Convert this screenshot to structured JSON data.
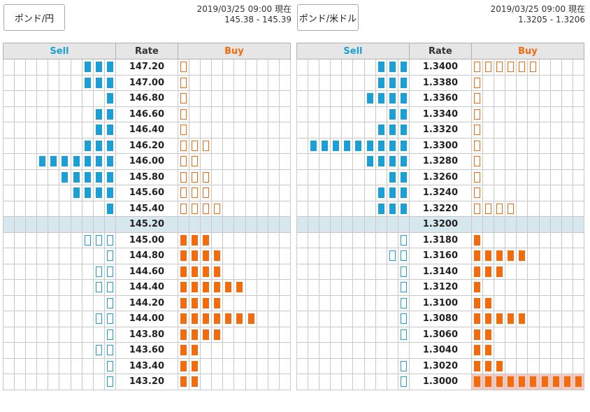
{
  "colors": {
    "sell": "#1a9fd6",
    "buy": "#f26b0c",
    "current_row": "#d7e7ee",
    "highlight": "#f6c9c1",
    "header_bg": "#e6e6e6"
  },
  "panels": [
    {
      "pair_label": "ポンド/円",
      "timestamp": "2019/03/25 09:00 現在",
      "quote": "145.38 - 145.39",
      "headers": {
        "sell": "Sell",
        "rate": "Rate",
        "buy": "Buy"
      },
      "rows": [
        {
          "rate": "147.20",
          "sell": 3,
          "sell_type": "filled",
          "buy": 1,
          "buy_type": "outline"
        },
        {
          "rate": "147.00",
          "sell": 3,
          "sell_type": "filled",
          "buy": 1,
          "buy_type": "outline"
        },
        {
          "rate": "146.80",
          "sell": 1,
          "sell_type": "filled",
          "buy": 1,
          "buy_type": "outline"
        },
        {
          "rate": "146.60",
          "sell": 2,
          "sell_type": "filled",
          "buy": 1,
          "buy_type": "outline"
        },
        {
          "rate": "146.40",
          "sell": 2,
          "sell_type": "filled",
          "buy": 1,
          "buy_type": "outline"
        },
        {
          "rate": "146.20",
          "sell": 3,
          "sell_type": "filled",
          "buy": 3,
          "buy_type": "outline"
        },
        {
          "rate": "146.00",
          "sell": 7,
          "sell_type": "filled",
          "buy": 2,
          "buy_type": "outline"
        },
        {
          "rate": "145.80",
          "sell": 5,
          "sell_type": "filled",
          "buy": 3,
          "buy_type": "outline"
        },
        {
          "rate": "145.60",
          "sell": 4,
          "sell_type": "filled",
          "buy": 3,
          "buy_type": "outline"
        },
        {
          "rate": "145.40",
          "sell": 1,
          "sell_type": "filled",
          "buy": 4,
          "buy_type": "outline"
        },
        {
          "rate": "145.20",
          "sell": 0,
          "sell_type": "filled",
          "buy": 0,
          "buy_type": "filled",
          "current": true
        },
        {
          "rate": "145.00",
          "sell": 3,
          "sell_type": "outline",
          "buy": 3,
          "buy_type": "filled"
        },
        {
          "rate": "144.80",
          "sell": 1,
          "sell_type": "outline",
          "buy": 4,
          "buy_type": "filled"
        },
        {
          "rate": "144.60",
          "sell": 2,
          "sell_type": "outline",
          "buy": 4,
          "buy_type": "filled"
        },
        {
          "rate": "144.40",
          "sell": 2,
          "sell_type": "outline",
          "buy": 6,
          "buy_type": "filled"
        },
        {
          "rate": "144.20",
          "sell": 1,
          "sell_type": "outline",
          "buy": 4,
          "buy_type": "filled"
        },
        {
          "rate": "144.00",
          "sell": 2,
          "sell_type": "outline",
          "buy": 7,
          "buy_type": "filled"
        },
        {
          "rate": "143.80",
          "sell": 1,
          "sell_type": "outline",
          "buy": 4,
          "buy_type": "filled"
        },
        {
          "rate": "143.60",
          "sell": 2,
          "sell_type": "outline",
          "buy": 2,
          "buy_type": "filled"
        },
        {
          "rate": "143.40",
          "sell": 1,
          "sell_type": "outline",
          "buy": 2,
          "buy_type": "filled"
        },
        {
          "rate": "143.20",
          "sell": 1,
          "sell_type": "outline",
          "buy": 2,
          "buy_type": "filled"
        }
      ]
    },
    {
      "pair_label": "ポンド/米ドル",
      "timestamp": "2019/03/25 09:00 現在",
      "quote": "1.3205 - 1.3206",
      "headers": {
        "sell": "Sell",
        "rate": "Rate",
        "buy": "Buy"
      },
      "rows": [
        {
          "rate": "1.3400",
          "sell": 3,
          "sell_type": "filled",
          "buy": 6,
          "buy_type": "outline"
        },
        {
          "rate": "1.3380",
          "sell": 3,
          "sell_type": "filled",
          "buy": 1,
          "buy_type": "outline"
        },
        {
          "rate": "1.3360",
          "sell": 4,
          "sell_type": "filled",
          "buy": 1,
          "buy_type": "outline"
        },
        {
          "rate": "1.3340",
          "sell": 2,
          "sell_type": "filled",
          "buy": 1,
          "buy_type": "outline"
        },
        {
          "rate": "1.3320",
          "sell": 3,
          "sell_type": "filled",
          "buy": 1,
          "buy_type": "outline"
        },
        {
          "rate": "1.3300",
          "sell": 9,
          "sell_type": "filled",
          "buy": 1,
          "buy_type": "outline"
        },
        {
          "rate": "1.3280",
          "sell": 4,
          "sell_type": "filled",
          "buy": 1,
          "buy_type": "outline"
        },
        {
          "rate": "1.3260",
          "sell": 2,
          "sell_type": "filled",
          "buy": 1,
          "buy_type": "outline"
        },
        {
          "rate": "1.3240",
          "sell": 3,
          "sell_type": "filled",
          "buy": 1,
          "buy_type": "outline"
        },
        {
          "rate": "1.3220",
          "sell": 3,
          "sell_type": "filled",
          "buy": 4,
          "buy_type": "outline"
        },
        {
          "rate": "1.3200",
          "sell": 0,
          "sell_type": "filled",
          "buy": 0,
          "buy_type": "filled",
          "current": true
        },
        {
          "rate": "1.3180",
          "sell": 1,
          "sell_type": "outline",
          "buy": 1,
          "buy_type": "filled"
        },
        {
          "rate": "1.3160",
          "sell": 2,
          "sell_type": "outline",
          "buy": 5,
          "buy_type": "filled"
        },
        {
          "rate": "1.3140",
          "sell": 1,
          "sell_type": "outline",
          "buy": 3,
          "buy_type": "filled"
        },
        {
          "rate": "1.3120",
          "sell": 1,
          "sell_type": "outline",
          "buy": 1,
          "buy_type": "filled"
        },
        {
          "rate": "1.3100",
          "sell": 1,
          "sell_type": "outline",
          "buy": 2,
          "buy_type": "filled"
        },
        {
          "rate": "1.3080",
          "sell": 1,
          "sell_type": "outline",
          "buy": 5,
          "buy_type": "filled"
        },
        {
          "rate": "1.3060",
          "sell": 1,
          "sell_type": "outline",
          "buy": 2,
          "buy_type": "filled"
        },
        {
          "rate": "1.3040",
          "sell": 0,
          "sell_type": "outline",
          "buy": 2,
          "buy_type": "filled"
        },
        {
          "rate": "1.3020",
          "sell": 1,
          "sell_type": "outline",
          "buy": 3,
          "buy_type": "filled"
        },
        {
          "rate": "1.3000",
          "sell": 1,
          "sell_type": "outline",
          "buy": 10,
          "buy_type": "filled",
          "highlight": true
        }
      ]
    }
  ]
}
